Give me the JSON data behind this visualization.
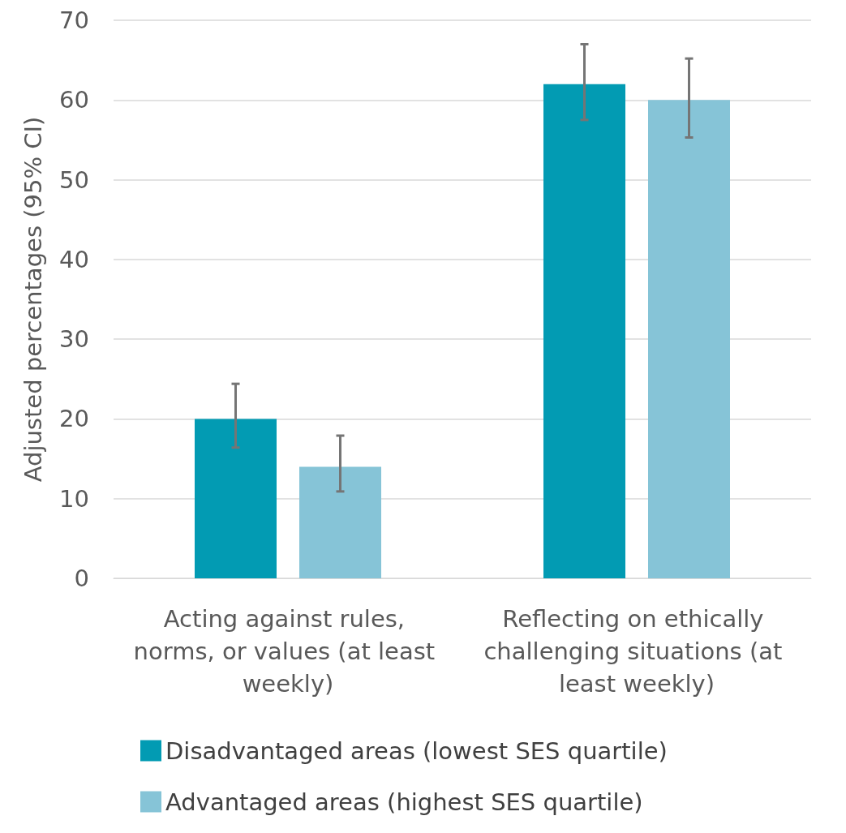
{
  "chart_data": {
    "type": "bar",
    "ylabel": "Adjusted percentages (95% CI)",
    "categories": [
      "Acting against rules, norms, or values (at least weekly)",
      "Reflecting on ethically challenging situations (at least weekly)"
    ],
    "series": [
      {
        "name": "Disadvantaged areas (lowest SES quartile)",
        "color": "#029bb3",
        "values": [
          20,
          62
        ],
        "errors": [
          [
            16.4,
            24.4
          ],
          [
            57.5,
            67
          ]
        ]
      },
      {
        "name": "Advantaged areas (highest SES quartile)",
        "color": "#86c4d7",
        "values": [
          14,
          60
        ],
        "errors": [
          [
            10.9,
            17.9
          ],
          [
            55.3,
            65.2
          ]
        ]
      }
    ],
    "ylim": [
      0,
      70
    ],
    "yticks": [
      0,
      10,
      20,
      30,
      40,
      50,
      60,
      70
    ],
    "grid": "y",
    "legend": "bottom left"
  }
}
